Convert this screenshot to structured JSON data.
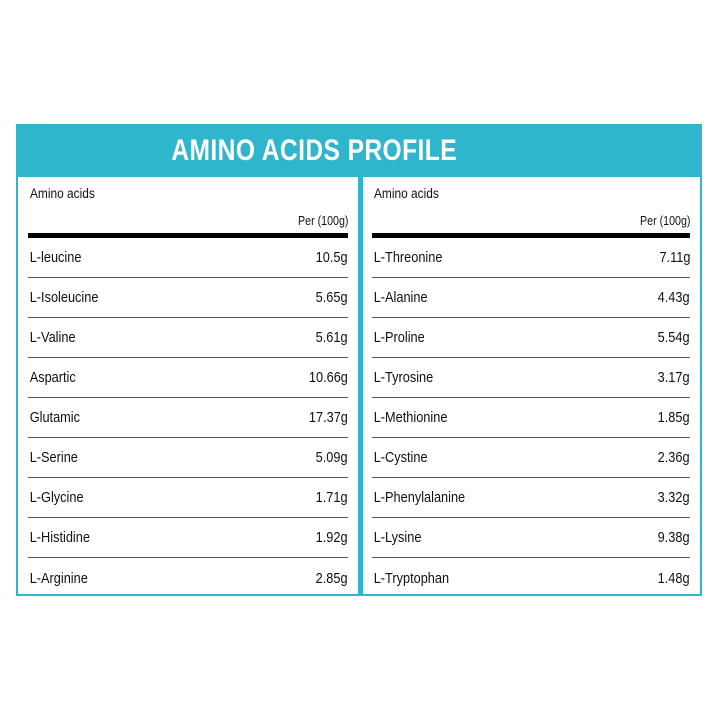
{
  "title": "AMINO ACIDS PROFILE",
  "colors": {
    "accent": "#2fb5cc",
    "rule": "#000000",
    "text": "#111111"
  },
  "left": {
    "header": "Amino acids",
    "unit": "Per (100g)",
    "rows": [
      {
        "name": "L-leucine",
        "value": "10.5g"
      },
      {
        "name": "L-Isoleucine",
        "value": "5.65g"
      },
      {
        "name": "L-Valine",
        "value": "5.61g"
      },
      {
        "name": "Aspartic",
        "value": "10.66g"
      },
      {
        "name": "Glutamic",
        "value": "17.37g"
      },
      {
        "name": "L-Serine",
        "value": "5.09g"
      },
      {
        "name": "L-Glycine",
        "value": "1.71g"
      },
      {
        "name": "L-Histidine",
        "value": "1.92g"
      },
      {
        "name": "L-Arginine",
        "value": "2.85g"
      }
    ]
  },
  "right": {
    "header": "Amino acids",
    "unit": "Per (100g)",
    "rows": [
      {
        "name": "L-Threonine",
        "value": "7.11g"
      },
      {
        "name": "L-Alanine",
        "value": "4.43g"
      },
      {
        "name": "L-Proline",
        "value": "5.54g"
      },
      {
        "name": "L-Tyrosine",
        "value": "3.17g"
      },
      {
        "name": "L-Methionine",
        "value": "1.85g"
      },
      {
        "name": "L-Cystine",
        "value": "2.36g"
      },
      {
        "name": "L-Phenylalanine",
        "value": "3.32g"
      },
      {
        "name": "L-Lysine",
        "value": "9.38g"
      },
      {
        "name": "L-Tryptophan",
        "value": "1.48g"
      }
    ]
  }
}
